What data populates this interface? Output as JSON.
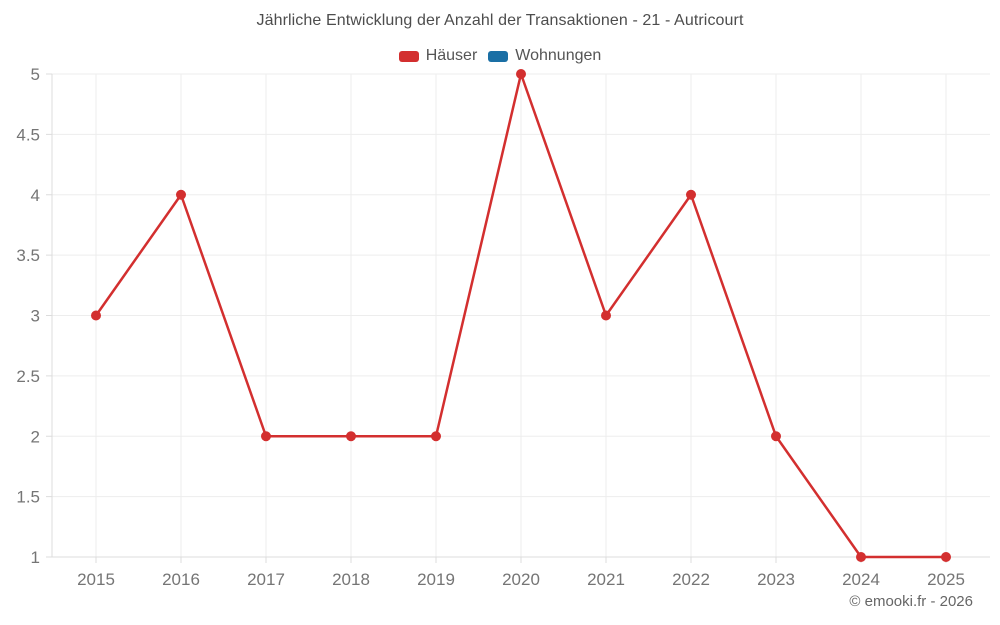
{
  "header": {
    "title": "Jährliche Entwicklung der Anzahl der Transaktionen - 21 - Autricourt"
  },
  "footer": {
    "credit": "© emooki.fr - 2026"
  },
  "colors": {
    "hauser_red": "#d32f2f",
    "wohnungen_blue": "#1a6fa5",
    "gridline": "#ededed",
    "axis": "#dcdcdc",
    "tick_label": "#757575"
  },
  "chart_data": {
    "type": "line",
    "title": "Jährliche Entwicklung der Anzahl der Transaktionen - 21 - Autricourt",
    "categories": [
      "2015",
      "2016",
      "2017",
      "2018",
      "2019",
      "2020",
      "2021",
      "2022",
      "2023",
      "2024",
      "2025"
    ],
    "series": [
      {
        "name": "Häuser",
        "color": "#d32f2f",
        "values": [
          3,
          4,
          2,
          2,
          2,
          5,
          3,
          4,
          2,
          1,
          1
        ]
      },
      {
        "name": "Wohnungen",
        "color": "#1a6fa5",
        "values": []
      }
    ],
    "xlabel": "",
    "ylabel": "",
    "ylim": [
      1,
      5
    ],
    "y_ticks": [
      1,
      1.5,
      2,
      2.5,
      3,
      3.5,
      4,
      4.5,
      5
    ],
    "grid": true,
    "legend_position": "top",
    "marker_radius": 5,
    "line_width": 2.5
  }
}
